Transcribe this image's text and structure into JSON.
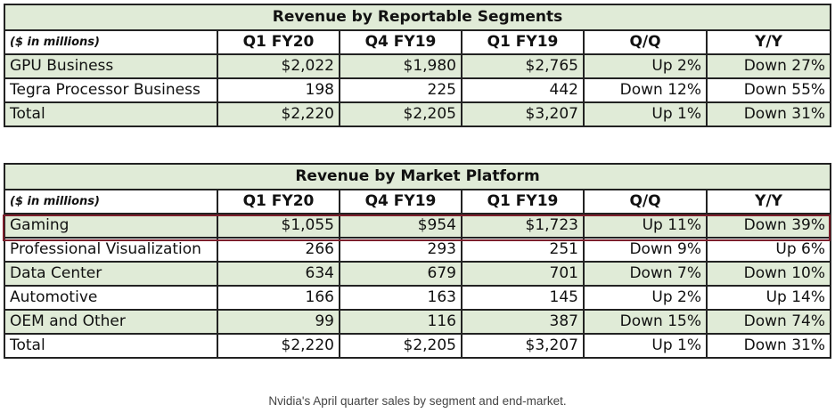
{
  "table1": {
    "title": "Revenue by Reportable Segments",
    "headers": [
      "($ in millions)",
      "Q1 FY20",
      "Q4 FY19",
      "Q1 FY19",
      "Q/Q",
      "Y/Y"
    ],
    "rows": [
      [
        "GPU Business",
        "$2,022",
        "$1,980",
        "$2,765",
        "Up 2%",
        "Down 27%"
      ],
      [
        "Tegra Processor Business",
        "198",
        "225",
        "442",
        "Down 12%",
        "Down 55%"
      ],
      [
        "Total",
        "$2,220",
        "$2,205",
        "$3,207",
        "Up 1%",
        "Down 31%"
      ]
    ]
  },
  "table2": {
    "title": "Revenue by Market Platform",
    "headers": [
      "($ in millions)",
      "Q1 FY20",
      "Q4 FY19",
      "Q1 FY19",
      "Q/Q",
      "Y/Y"
    ],
    "rows": [
      [
        "Gaming",
        "$1,055",
        "$954",
        "$1,723",
        "Up 11%",
        "Down 39%"
      ],
      [
        "Professional Visualization",
        "266",
        "293",
        "251",
        "Down 9%",
        "Up 6%"
      ],
      [
        "Data Center",
        "634",
        "679",
        "701",
        "Down 7%",
        "Down 10%"
      ],
      [
        "Automotive",
        "166",
        "163",
        "145",
        "Up 2%",
        "Up 14%"
      ],
      [
        "OEM and Other",
        "99",
        "116",
        "387",
        "Down 15%",
        "Down 74%"
      ],
      [
        "Total",
        "$2,220",
        "$2,205",
        "$3,207",
        "Up 1%",
        "Down 31%"
      ]
    ],
    "highlighted_row": "Gaming"
  },
  "caption": "Nvidia's April quarter sales by segment and end-market.",
  "colors": {
    "row_shade": "#e0ebd7",
    "highlight_border": "#7d1f2c",
    "grid": "#222222"
  }
}
